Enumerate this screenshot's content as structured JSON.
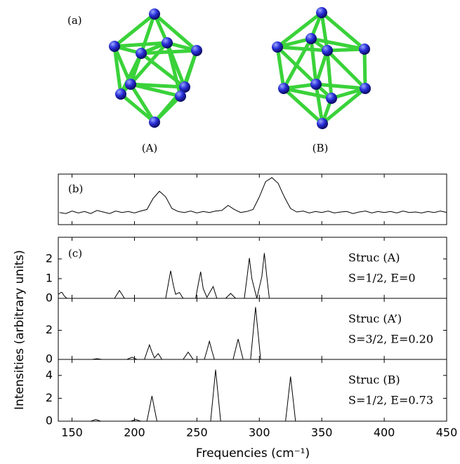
{
  "panel_a": {
    "label": "(a)",
    "structures": [
      "(A)",
      "(B)"
    ]
  },
  "axes": {
    "xlabel": "Frequencies (cm⁻¹)",
    "ylabel": "Intensities (arbitrary units)",
    "xlim": [
      139,
      450
    ],
    "xticks": [
      150,
      200,
      250,
      300,
      350,
      400,
      450
    ]
  },
  "chart_data": [
    {
      "type": "line",
      "panel_label": "(b)",
      "color": "#000000",
      "ylim": [
        0,
        1
      ],
      "x": [
        140,
        145,
        150,
        155,
        160,
        165,
        170,
        175,
        180,
        185,
        190,
        195,
        200,
        205,
        210,
        215,
        220,
        225,
        230,
        235,
        240,
        245,
        250,
        255,
        260,
        265,
        270,
        275,
        280,
        285,
        290,
        295,
        300,
        305,
        310,
        315,
        320,
        325,
        330,
        335,
        340,
        345,
        350,
        355,
        360,
        365,
        370,
        375,
        380,
        385,
        390,
        395,
        400,
        405,
        410,
        415,
        420,
        425,
        430,
        435,
        440,
        445,
        450
      ],
      "values": [
        0.24,
        0.22,
        0.27,
        0.23,
        0.26,
        0.22,
        0.28,
        0.25,
        0.22,
        0.27,
        0.24,
        0.26,
        0.23,
        0.27,
        0.3,
        0.52,
        0.66,
        0.55,
        0.32,
        0.26,
        0.24,
        0.27,
        0.23,
        0.26,
        0.24,
        0.27,
        0.28,
        0.38,
        0.3,
        0.24,
        0.26,
        0.3,
        0.55,
        0.85,
        0.93,
        0.82,
        0.55,
        0.32,
        0.25,
        0.27,
        0.23,
        0.26,
        0.24,
        0.27,
        0.23,
        0.25,
        0.26,
        0.22,
        0.25,
        0.27,
        0.23,
        0.26,
        0.24,
        0.26,
        0.23,
        0.27,
        0.24,
        0.25,
        0.23,
        0.26,
        0.24,
        0.27,
        0.24
      ]
    },
    {
      "type": "line",
      "panel_label": "(c)",
      "annotation": [
        "Struc (A)",
        "S=1/2, E=0"
      ],
      "color": "#000000",
      "ylim": [
        0,
        3.1
      ],
      "yticks": [
        0,
        1,
        2
      ],
      "x": [
        139,
        141,
        142,
        144,
        146,
        184,
        186,
        188,
        190,
        192,
        225,
        227,
        229,
        231,
        233,
        236,
        239,
        249,
        251,
        253,
        255,
        258,
        263,
        266,
        273,
        277,
        281,
        288,
        290,
        292,
        294,
        298,
        302,
        304,
        306,
        308,
        450
      ],
      "values": [
        0.2,
        0.3,
        0.3,
        0.1,
        0,
        0,
        0.2,
        0.4,
        0.2,
        0,
        0,
        0.7,
        1.4,
        0.7,
        0.2,
        0.3,
        0,
        0,
        0.7,
        1.35,
        0.5,
        0.05,
        0.6,
        0,
        0,
        0.25,
        0,
        0,
        1.0,
        2.05,
        1.0,
        0,
        1.1,
        2.3,
        1.1,
        0,
        0
      ]
    },
    {
      "type": "line",
      "annotation": [
        "Struc (A’)",
        "S=3/2, E=0.20"
      ],
      "color": "#000000",
      "ylim": [
        0,
        4.2
      ],
      "yticks": [
        0,
        2
      ],
      "x": [
        139,
        166,
        170,
        174,
        194,
        198,
        202,
        208,
        210,
        212,
        214,
        216,
        219,
        222,
        239,
        241,
        243,
        245,
        247,
        256,
        258,
        260,
        262,
        264,
        279,
        281,
        283,
        285,
        287,
        293,
        295,
        297,
        299,
        301,
        450
      ],
      "values": [
        0,
        0,
        0.05,
        0,
        0,
        0.15,
        0,
        0,
        0.5,
        1.0,
        0.5,
        0.1,
        0.4,
        0,
        0,
        0.25,
        0.5,
        0.25,
        0,
        0,
        0.6,
        1.25,
        0.6,
        0,
        0,
        0.7,
        1.4,
        0.7,
        0,
        0,
        1.8,
        3.6,
        1.8,
        0,
        0
      ]
    },
    {
      "type": "line",
      "annotation": [
        "Struc (B)",
        "S=1/2, E=0.73"
      ],
      "color": "#000000",
      "ylim": [
        0,
        5.4
      ],
      "yticks": [
        0,
        2,
        4
      ],
      "x": [
        139,
        165,
        169,
        173,
        197,
        201,
        205,
        210,
        212,
        214,
        216,
        218,
        261,
        263,
        265,
        267,
        269,
        321,
        323,
        325,
        327,
        329,
        450
      ],
      "values": [
        0,
        0,
        0.15,
        0,
        0,
        0.15,
        0,
        0,
        1.1,
        2.2,
        1.1,
        0,
        0,
        2.25,
        4.5,
        2.25,
        0,
        0,
        1.95,
        3.9,
        1.95,
        0,
        0
      ]
    }
  ]
}
